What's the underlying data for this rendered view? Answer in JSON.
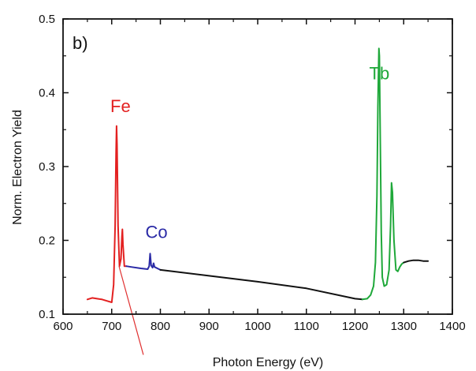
{
  "chart_data": {
    "type": "line",
    "panel_label": "b)",
    "xlabel": "Photon Energy (eV)",
    "ylabel": "Norm. Electron Yield",
    "xlim": [
      600,
      1400
    ],
    "ylim": [
      0.1,
      0.5
    ],
    "x_ticks": [
      600,
      700,
      800,
      900,
      1000,
      1100,
      1200,
      1300,
      1400
    ],
    "y_ticks": [
      0.1,
      0.2,
      0.3,
      0.4,
      0.5
    ],
    "y_tick_labels": [
      "0.1",
      "0.2",
      "0.3",
      "0.4",
      "0.5"
    ],
    "grid": false,
    "legend": "none",
    "series": [
      {
        "name": "Fe",
        "color": "#e32020",
        "points": [
          [
            650,
            0.12
          ],
          [
            660,
            0.122
          ],
          [
            670,
            0.121
          ],
          [
            680,
            0.12
          ],
          [
            690,
            0.118
          ],
          [
            700,
            0.116
          ],
          [
            704,
            0.14
          ],
          [
            707,
            0.22
          ],
          [
            709,
            0.32
          ],
          [
            710,
            0.355
          ],
          [
            711,
            0.33
          ],
          [
            713,
            0.22
          ],
          [
            716,
            0.165
          ],
          [
            719,
            0.175
          ],
          [
            721,
            0.205
          ],
          [
            722,
            0.215
          ],
          [
            723,
            0.195
          ],
          [
            726,
            0.165
          ],
          [
            730,
            0.165
          ]
        ]
      },
      {
        "name": "Co",
        "color": "#2a2aa6",
        "points": [
          [
            730,
            0.165
          ],
          [
            740,
            0.164
          ],
          [
            760,
            0.162
          ],
          [
            774,
            0.161
          ],
          [
            777,
            0.165
          ],
          [
            779,
            0.182
          ],
          [
            781,
            0.166
          ],
          [
            784,
            0.163
          ],
          [
            786,
            0.169
          ],
          [
            788,
            0.164
          ],
          [
            800,
            0.16
          ]
        ]
      },
      {
        "name": "",
        "color": "#111111",
        "points": [
          [
            800,
            0.16
          ],
          [
            900,
            0.152
          ],
          [
            1000,
            0.144
          ],
          [
            1100,
            0.135
          ],
          [
            1200,
            0.121
          ],
          [
            1215,
            0.12
          ]
        ]
      },
      {
        "name": "Tb",
        "color": "#1fa83a",
        "points": [
          [
            1215,
            0.12
          ],
          [
            1225,
            0.121
          ],
          [
            1232,
            0.126
          ],
          [
            1238,
            0.138
          ],
          [
            1242,
            0.17
          ],
          [
            1245,
            0.26
          ],
          [
            1247,
            0.38
          ],
          [
            1249,
            0.46
          ],
          [
            1250,
            0.45
          ],
          [
            1252,
            0.33
          ],
          [
            1254,
            0.21
          ],
          [
            1256,
            0.15
          ],
          [
            1260,
            0.138
          ],
          [
            1265,
            0.14
          ],
          [
            1270,
            0.16
          ],
          [
            1273,
            0.22
          ],
          [
            1275,
            0.278
          ],
          [
            1277,
            0.265
          ],
          [
            1280,
            0.2
          ],
          [
            1284,
            0.16
          ],
          [
            1288,
            0.158
          ],
          [
            1292,
            0.164
          ],
          [
            1296,
            0.168
          ],
          [
            1300,
            0.17
          ]
        ]
      },
      {
        "name": "",
        "color": "#111111",
        "points": [
          [
            1300,
            0.17
          ],
          [
            1310,
            0.172
          ],
          [
            1320,
            0.173
          ],
          [
            1330,
            0.173
          ],
          [
            1340,
            0.172
          ],
          [
            1350,
            0.172
          ]
        ]
      }
    ],
    "annotations": [
      {
        "text": "Fe",
        "x": 718,
        "y": 0.374,
        "color": "#e32020"
      },
      {
        "text": "Co",
        "x": 792,
        "y": 0.203,
        "color": "#2a2aa6"
      },
      {
        "text": "Tb",
        "x": 1250,
        "y": 0.418,
        "color": "#1fa83a"
      }
    ],
    "pointer_line": {
      "color": "#e03030",
      "from": [
        715,
        0.165
      ],
      "to": [
        765,
        0.045
      ]
    }
  }
}
